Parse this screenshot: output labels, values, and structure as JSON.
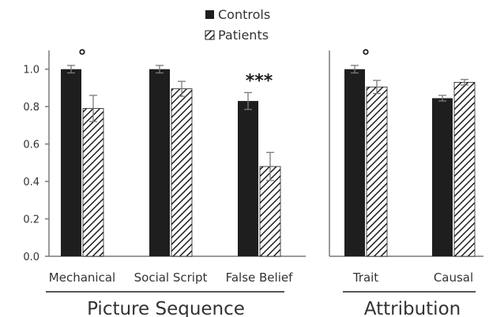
{
  "legend": {
    "controls_label": "Controls",
    "patients_label": "Patients"
  },
  "colors": {
    "controls": "#1e1e1e",
    "patients_hatch": "#1e1e1e",
    "axis": "#7a7a7a",
    "error_bar": "#7a7a7a",
    "text": "#333333"
  },
  "chart_data": {
    "type": "bar",
    "ylim": [
      0,
      1.1
    ],
    "yticks": [
      "0.0",
      "0.2",
      "0.4",
      "0.6",
      "0.8",
      "1.0"
    ],
    "grid": false,
    "legend_position": "top-center",
    "series_names": [
      "Controls",
      "Patients"
    ],
    "panels": [
      {
        "group_label": "Picture Sequence",
        "categories": [
          "Mechanical",
          "Social Script",
          "False Belief"
        ],
        "series": [
          {
            "name": "Controls",
            "values": [
              1.0,
              1.0,
              0.83
            ],
            "errors": [
              0.02,
              0.02,
              0.045
            ]
          },
          {
            "name": "Patients",
            "values": [
              0.79,
              0.895,
              0.48
            ],
            "errors": [
              0.07,
              0.04,
              0.075
            ]
          }
        ],
        "annotations": [
          {
            "category_index": 0,
            "text": "°"
          },
          {
            "category_index": 2,
            "text": "***"
          }
        ]
      },
      {
        "group_label": "Attribution",
        "categories": [
          "Trait",
          "Causal"
        ],
        "series": [
          {
            "name": "Controls",
            "values": [
              1.0,
              0.845
            ],
            "errors": [
              0.02,
              0.015
            ]
          },
          {
            "name": "Patients",
            "values": [
              0.905,
              0.93
            ],
            "errors": [
              0.035,
              0.015
            ]
          }
        ],
        "annotations": [
          {
            "category_index": 0,
            "text": "°"
          }
        ]
      }
    ]
  }
}
